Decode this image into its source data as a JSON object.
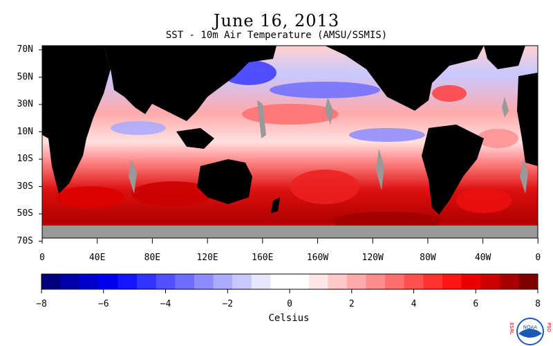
{
  "title": "June 16, 2013",
  "subtitle": "SST - 10m Air Temperature (AMSU/SSMIS)",
  "lat_labels": [
    "70N",
    "50N",
    "30N",
    "10N",
    "10S",
    "30S",
    "50S",
    "70S"
  ],
  "lon_labels": [
    "0",
    "40E",
    "80E",
    "120E",
    "160E",
    "160W",
    "120W",
    "80W",
    "40W",
    "0"
  ],
  "colorbar": {
    "ticks": [
      "−8",
      "−6",
      "−4",
      "−2",
      "0",
      "2",
      "4",
      "6",
      "8"
    ],
    "title": "Celsius",
    "min": -8,
    "max": 8,
    "colors": [
      "#00007f",
      "#0000a8",
      "#0000cc",
      "#0000ee",
      "#1414ff",
      "#3232ff",
      "#5050ff",
      "#6e6eff",
      "#8c8cff",
      "#aaaaff",
      "#c8c8ff",
      "#e6e6ff",
      "#ffffff",
      "#ffffff",
      "#ffe6e6",
      "#ffc8c8",
      "#ffaaaa",
      "#ff8c8c",
      "#ff6e6e",
      "#ff5050",
      "#ff3232",
      "#ff1414",
      "#ee0000",
      "#cc0000",
      "#a80000",
      "#7f0000"
    ]
  },
  "map": {
    "land_color": "#000000",
    "ice_color": "#999999"
  },
  "logo": {
    "text": "NOAA",
    "left_letters": "ESRL",
    "right_letters": "PSD"
  }
}
